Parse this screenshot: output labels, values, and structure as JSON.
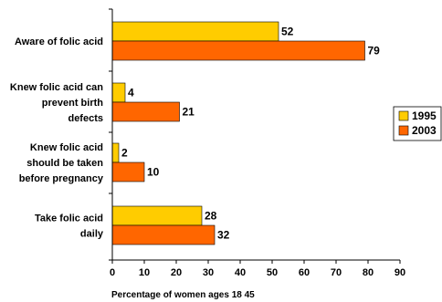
{
  "chart_data": {
    "type": "bar",
    "orientation": "horizontal",
    "categories": [
      [
        "Aware of folic acid"
      ],
      [
        "Knew folic acid can",
        "prevent birth",
        "defects"
      ],
      [
        "Knew folic acid",
        "should be taken",
        "before pregnancy"
      ],
      [
        "Take folic acid",
        "daily"
      ]
    ],
    "series": [
      {
        "name": "1995",
        "values": [
          52,
          4,
          2,
          28
        ],
        "color": "#FFCC00"
      },
      {
        "name": "2003",
        "values": [
          79,
          21,
          10,
          32
        ],
        "color": "#FF6600"
      }
    ],
    "xlim": [
      0,
      90
    ],
    "xticks": [
      0,
      10,
      20,
      30,
      40,
      50,
      60,
      70,
      80,
      90
    ],
    "xlabel": "Percentage of women ages 18  45",
    "legend": "right",
    "grid": false
  }
}
